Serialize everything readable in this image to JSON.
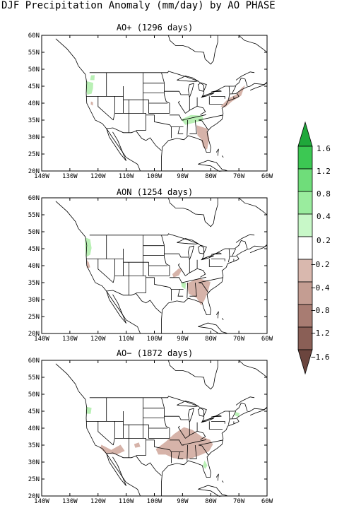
{
  "title": "DJF Precipitation Anomaly (mm/day) by AO PHASE",
  "panels": [
    {
      "label": "AO+ (1296 days)"
    },
    {
      "label": "AON (1254 days)"
    },
    {
      "label": "AO− (1872 days)"
    }
  ],
  "lat_ticks": [
    "20N",
    "25N",
    "30N",
    "35N",
    "40N",
    "45N",
    "50N",
    "55N",
    "60N"
  ],
  "lon_ticks": [
    "140W",
    "130W",
    "120W",
    "110W",
    "100W",
    "90W",
    "80W",
    "70W",
    "60W"
  ],
  "colorbar": {
    "positive_labels": [
      "1.6",
      "1.2",
      "0.8",
      "0.4",
      "0.2"
    ],
    "negative_labels": [
      "−0.2",
      "−0.4",
      "−0.8",
      "−1.2",
      "−1.6"
    ],
    "positive_colors": [
      "#1fa83a",
      "#3cc853",
      "#6fdd7a",
      "#9aec9e",
      "#c8f8c8"
    ],
    "negative_colors": [
      "#d9b8ae",
      "#c49d92",
      "#a87c72",
      "#8a5f56",
      "#6b453e"
    ]
  },
  "colors": {
    "wet_light": "#b9f0b5",
    "dry_light": "#d6b3a9"
  }
}
